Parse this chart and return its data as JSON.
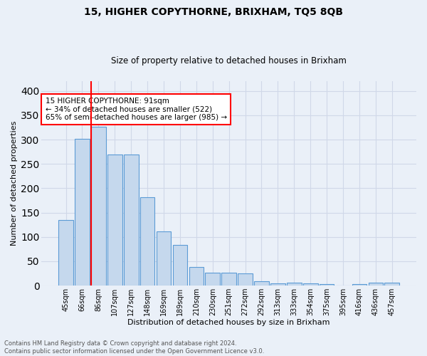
{
  "title": "15, HIGHER COPYTHORNE, BRIXHAM, TQ5 8QB",
  "subtitle": "Size of property relative to detached houses in Brixham",
  "xlabel": "Distribution of detached houses by size in Brixham",
  "ylabel": "Number of detached properties",
  "footer_line1": "Contains HM Land Registry data © Crown copyright and database right 2024.",
  "footer_line2": "Contains public sector information licensed under the Open Government Licence v3.0.",
  "bar_labels": [
    "45sqm",
    "66sqm",
    "86sqm",
    "107sqm",
    "127sqm",
    "148sqm",
    "169sqm",
    "189sqm",
    "210sqm",
    "230sqm",
    "251sqm",
    "272sqm",
    "292sqm",
    "313sqm",
    "333sqm",
    "354sqm",
    "375sqm",
    "395sqm",
    "416sqm",
    "436sqm",
    "457sqm"
  ],
  "bar_values": [
    135,
    302,
    327,
    270,
    270,
    181,
    112,
    83,
    38,
    27,
    27,
    25,
    9,
    4,
    6,
    5,
    3,
    0,
    3,
    6,
    6
  ],
  "bar_color": "#c5d8ed",
  "bar_edge_color": "#5b9bd5",
  "grid_color": "#d0d8e8",
  "background_color": "#eaf0f8",
  "redline_bar_index": 2,
  "annotation_text": "15 HIGHER COPYTHORNE: 91sqm\n← 34% of detached houses are smaller (522)\n65% of semi-detached houses are larger (985) →",
  "annotation_box_color": "white",
  "annotation_box_edge": "red",
  "ylim": [
    0,
    420
  ],
  "yticks": [
    0,
    50,
    100,
    150,
    200,
    250,
    300,
    350,
    400
  ],
  "title_fontsize": 10,
  "subtitle_fontsize": 8.5,
  "ylabel_fontsize": 8,
  "xlabel_fontsize": 8,
  "tick_fontsize": 7,
  "annotation_fontsize": 7.5,
  "footer_fontsize": 6
}
